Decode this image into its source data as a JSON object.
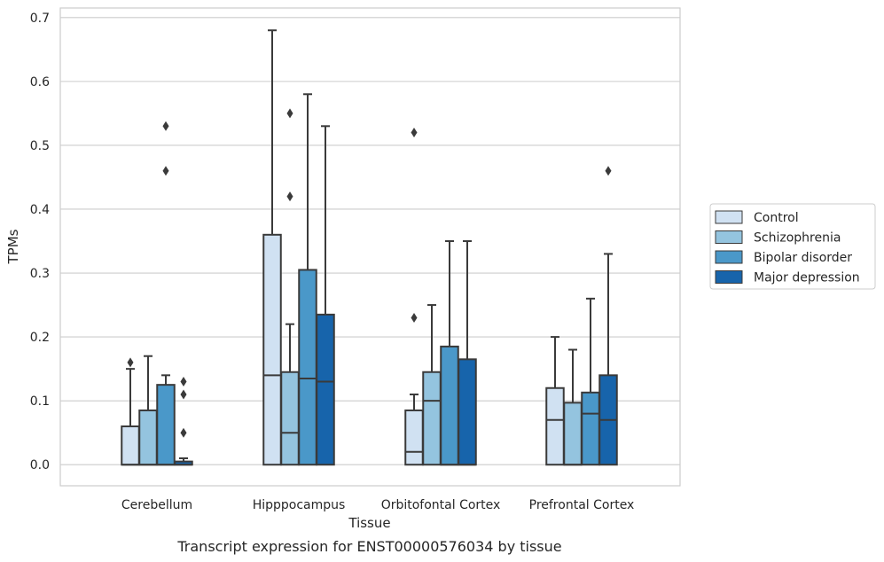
{
  "chart_data": {
    "type": "box",
    "title": "",
    "caption": "Transcript expression for ENST00000576034 by tissue",
    "xlabel": "Tissue",
    "ylabel": "TPMs",
    "ylim": [
      -0.033,
      0.715
    ],
    "yticks": [
      0.0,
      0.1,
      0.2,
      0.3,
      0.4,
      0.5,
      0.6,
      0.7
    ],
    "ytick_labels": [
      "0.0",
      "0.1",
      "0.2",
      "0.3",
      "0.4",
      "0.5",
      "0.6",
      "0.7"
    ],
    "grid": "horizontal",
    "legend_position": "right",
    "categories": [
      "Cerebellum",
      "Hipppocampus",
      "Orbitofontal Cortex",
      "Prefrontal Cortex"
    ],
    "series": [
      {
        "name": "Control",
        "color": "#d0e1f2",
        "boxes": [
          {
            "q1": 0.0,
            "median": 0.0,
            "q3": 0.06,
            "whisker_low": 0.0,
            "whisker_high": 0.15,
            "outliers": [
              0.16
            ]
          },
          {
            "q1": 0.0,
            "median": 0.14,
            "q3": 0.36,
            "whisker_low": 0.0,
            "whisker_high": 0.68,
            "outliers": []
          },
          {
            "q1": 0.0,
            "median": 0.02,
            "q3": 0.085,
            "whisker_low": 0.0,
            "whisker_high": 0.11,
            "outliers": [
              0.23,
              0.52
            ]
          },
          {
            "q1": 0.0,
            "median": 0.07,
            "q3": 0.12,
            "whisker_low": 0.0,
            "whisker_high": 0.2,
            "outliers": []
          }
        ]
      },
      {
        "name": "Schizophrenia",
        "color": "#94c4df",
        "boxes": [
          {
            "q1": 0.0,
            "median": 0.0,
            "q3": 0.085,
            "whisker_low": 0.0,
            "whisker_high": 0.17,
            "outliers": []
          },
          {
            "q1": 0.0,
            "median": 0.05,
            "q3": 0.145,
            "whisker_low": 0.0,
            "whisker_high": 0.22,
            "outliers": [
              0.42,
              0.55
            ]
          },
          {
            "q1": 0.0,
            "median": 0.1,
            "q3": 0.145,
            "whisker_low": 0.0,
            "whisker_high": 0.25,
            "outliers": []
          },
          {
            "q1": 0.0,
            "median": 0.0,
            "q3": 0.097,
            "whisker_low": 0.0,
            "whisker_high": 0.18,
            "outliers": []
          }
        ]
      },
      {
        "name": "Bipolar disorder",
        "color": "#4a98c9",
        "boxes": [
          {
            "q1": 0.0,
            "median": 0.0,
            "q3": 0.125,
            "whisker_low": 0.0,
            "whisker_high": 0.14,
            "outliers": [
              0.46,
              0.53
            ]
          },
          {
            "q1": 0.0,
            "median": 0.135,
            "q3": 0.305,
            "whisker_low": 0.0,
            "whisker_high": 0.58,
            "outliers": []
          },
          {
            "q1": 0.0,
            "median": 0.0,
            "q3": 0.185,
            "whisker_low": 0.0,
            "whisker_high": 0.35,
            "outliers": []
          },
          {
            "q1": 0.0,
            "median": 0.08,
            "q3": 0.113,
            "whisker_low": 0.0,
            "whisker_high": 0.26,
            "outliers": []
          }
        ]
      },
      {
        "name": "Major depression",
        "color": "#1764ab",
        "boxes": [
          {
            "q1": 0.0,
            "median": 0.0,
            "q3": 0.005,
            "whisker_low": 0.0,
            "whisker_high": 0.01,
            "outliers": [
              0.05,
              0.11,
              0.13
            ]
          },
          {
            "q1": 0.0,
            "median": 0.13,
            "q3": 0.235,
            "whisker_low": 0.0,
            "whisker_high": 0.53,
            "outliers": []
          },
          {
            "q1": 0.0,
            "median": 0.0,
            "q3": 0.165,
            "whisker_low": 0.0,
            "whisker_high": 0.35,
            "outliers": []
          },
          {
            "q1": 0.0,
            "median": 0.07,
            "q3": 0.14,
            "whisker_low": 0.0,
            "whisker_high": 0.33,
            "outliers": [
              0.46
            ]
          }
        ]
      }
    ],
    "colors": {
      "grid": "#cccccc",
      "frame": "#cccccc",
      "edge": "#3a3a3a",
      "text": "#262626"
    }
  }
}
